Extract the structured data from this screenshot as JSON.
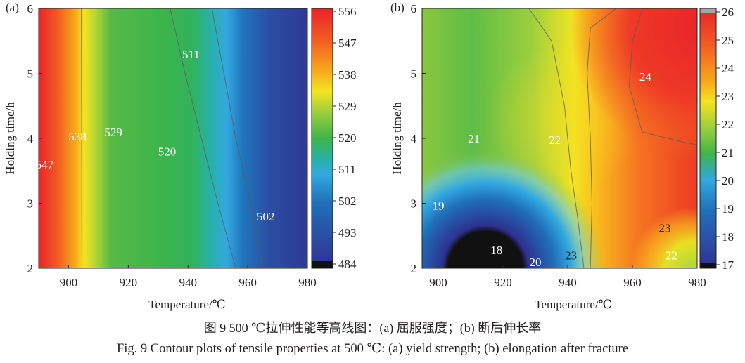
{
  "chart_data": [
    {
      "type": "heatmap",
      "panel_label": "(a)",
      "title": "",
      "xlabel": "Temperature/℃",
      "ylabel": "Holding time/h",
      "xlim": [
        890,
        980
      ],
      "ylim": [
        2,
        6
      ],
      "xticks": [
        900,
        920,
        940,
        960,
        980
      ],
      "yticks": [
        2,
        3,
        4,
        5,
        6
      ],
      "colorbar": {
        "ticks": [
          556,
          547,
          538,
          529,
          520,
          511,
          502,
          493,
          484
        ],
        "range": [
          484,
          556
        ]
      },
      "contour_lines": [
        {
          "level": 538,
          "points": [
            [
              904.5,
              2
            ],
            [
              904.3,
              6
            ]
          ]
        },
        {
          "level": 511,
          "points": [
            [
              956,
              2
            ],
            [
              950,
              3
            ],
            [
              944.5,
              4
            ],
            [
              939,
              5
            ],
            [
              934,
              6
            ]
          ]
        },
        {
          "level": 502,
          "points": [
            [
              965,
              2
            ],
            [
              961,
              3
            ],
            [
              956,
              4
            ],
            [
              952,
              5
            ],
            [
              948,
              6
            ]
          ]
        }
      ],
      "contour_labels": [
        {
          "text": "511",
          "x": 941,
          "y": 5.3
        },
        {
          "text": "538",
          "x": 903,
          "y": 4.03
        },
        {
          "text": "529",
          "x": 915,
          "y": 4.1
        },
        {
          "text": "520",
          "x": 933,
          "y": 3.8
        },
        {
          "text": "547",
          "x": 892,
          "y": 3.6
        },
        {
          "text": "502",
          "x": 966,
          "y": 2.8
        }
      ]
    },
    {
      "type": "heatmap",
      "panel_label": "(b)",
      "title": "",
      "xlabel": "Temperature/℃",
      "ylabel": "Holding time/h",
      "xlim": [
        895,
        980
      ],
      "ylim": [
        2,
        6
      ],
      "xticks": [
        900,
        920,
        940,
        960,
        980
      ],
      "yticks": [
        2,
        3,
        4,
        5,
        6
      ],
      "colorbar": {
        "ticks": [
          26,
          25,
          24,
          23,
          22,
          21,
          20,
          19,
          18,
          17
        ],
        "range": [
          17,
          26
        ]
      },
      "contour_lines": [
        {
          "level": 22,
          "points": [
            [
              928,
              6
            ],
            [
              935,
              5.5
            ],
            [
              939,
              4.5
            ],
            [
              941,
              3.5
            ],
            [
              943,
              2.8
            ],
            [
              945,
              2
            ]
          ]
        },
        {
          "level": 23,
          "points": [
            [
              947,
              2
            ],
            [
              947.5,
              3
            ],
            [
              947,
              4
            ],
            [
              946,
              5
            ],
            [
              947,
              5.7
            ],
            [
              955,
              6
            ]
          ]
        },
        {
          "level": 24,
          "points": [
            [
              963,
              6
            ],
            [
              960,
              5.5
            ],
            [
              959,
              4.8
            ],
            [
              963,
              4.1
            ],
            [
              975,
              3.95
            ],
            [
              980,
              3.9
            ]
          ]
        }
      ],
      "contour_labels": [
        {
          "text": "21",
          "x": 911,
          "y": 4.0
        },
        {
          "text": "22",
          "x": 936,
          "y": 3.98
        },
        {
          "text": "24",
          "x": 964,
          "y": 4.95
        },
        {
          "text": "19",
          "x": 900,
          "y": 2.97
        },
        {
          "text": "18",
          "x": 918,
          "y": 2.28
        },
        {
          "text": "20",
          "x": 930,
          "y": 2.1
        },
        {
          "text": "23",
          "x": 941,
          "y": 2.2
        },
        {
          "text": "23",
          "x": 970,
          "y": 2.62
        },
        {
          "text": "22",
          "x": 972,
          "y": 2.2
        }
      ]
    }
  ],
  "caption": {
    "chinese": "图 9  500 ℃拉伸性能等高线图：(a) 屈服强度；(b) 断后伸长率",
    "english": "Fig. 9 Contour plots of tensile properties at 500 ℃: (a) yield strength; (b) elongation after fracture"
  }
}
